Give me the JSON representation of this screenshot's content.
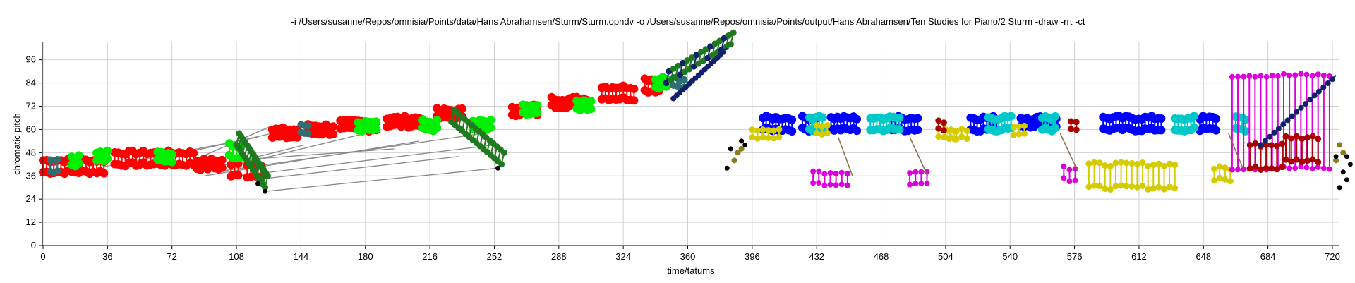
{
  "chart_data": {
    "type": "scatter",
    "title": "-i /Users/susanne/Repos/omnisia/Points/data/Hans Abrahamsen/Sturm/Sturm.opndv -o /Users/susanne/Repos/omnisia/Points/output/Hans Abrahamsen/Ten Studies for Piano/2 Sturm -draw -rrt -ct",
    "xlabel": "time/tatums",
    "ylabel": "chromatic pitch",
    "xlim": [
      0,
      732
    ],
    "ylim": [
      0,
      105
    ],
    "xticks": [
      0,
      36,
      72,
      108,
      144,
      180,
      216,
      252,
      288,
      324,
      360,
      396,
      432,
      468,
      504,
      540,
      576,
      612,
      648,
      684,
      720
    ],
    "yticks": [
      0,
      12,
      24,
      36,
      48,
      60,
      72,
      84,
      96
    ],
    "grid": true,
    "legend": "none",
    "colors": {
      "red": "#ff0000",
      "green": "#00ee00",
      "teal": "#2f6f73",
      "dark_green": "#1f7a1f",
      "navy": "#10206a",
      "blue": "#0000ff",
      "cyan": "#00c8c8",
      "yellow": "#d4cc00",
      "magenta": "#dd00dd",
      "dark_red": "#aa0000",
      "olive": "#8a7a20",
      "brown": "#8b6b4a",
      "black": "#000000",
      "gray": "#808080"
    },
    "series": [
      {
        "color": "red",
        "segments": [
          [
            0,
            36,
            44,
            38,
            48
          ],
          [
            20,
            40,
            38,
            42,
            48
          ],
          [
            86,
            100,
            40,
            44,
            50
          ]
        ]
      },
      {
        "color": "green",
        "segments": [
          [
            16,
            22,
            40,
            42,
            48
          ]
        ]
      },
      {
        "color": "teal",
        "segments": [
          [
            6,
            10,
            38,
            42,
            48
          ]
        ]
      }
    ],
    "red_regions": [
      [
        0,
        34,
        38,
        44
      ],
      [
        40,
        84,
        42,
        48
      ],
      [
        86,
        100,
        40,
        44
      ],
      [
        105,
        110,
        36,
        42
      ],
      [
        114,
        122,
        36,
        42
      ],
      [
        128,
        142,
        56,
        60
      ],
      [
        148,
        162,
        58,
        62
      ],
      [
        166,
        186,
        60,
        64
      ],
      [
        192,
        212,
        62,
        66
      ],
      [
        220,
        234,
        66,
        70
      ],
      [
        262,
        276,
        68,
        72
      ],
      [
        284,
        304,
        72,
        76
      ],
      [
        312,
        330,
        76,
        82
      ],
      [
        336,
        344,
        80,
        86
      ]
    ],
    "green_regions": [
      [
        16,
        20,
        42,
        46
      ],
      [
        30,
        36,
        44,
        48
      ],
      [
        64,
        72,
        44,
        48
      ],
      [
        104,
        110,
        46,
        52
      ],
      [
        176,
        186,
        60,
        64
      ],
      [
        212,
        220,
        60,
        64
      ],
      [
        240,
        250,
        60,
        64
      ],
      [
        268,
        276,
        68,
        72
      ],
      [
        298,
        306,
        70,
        74
      ],
      [
        342,
        348,
        82,
        86
      ]
    ],
    "teal_regions": [
      [
        4,
        8,
        38,
        44
      ],
      [
        144,
        148,
        58,
        62
      ],
      [
        352,
        358,
        82,
        86
      ]
    ],
    "dark_green_diagonals": [
      [
        108,
        124,
        52,
        30
      ],
      [
        228,
        256,
        64,
        42
      ],
      [
        348,
        384,
        84,
        104
      ]
    ],
    "navy_regions": [
      [
        352,
        380,
        76,
        100
      ],
      [
        680,
        720,
        52,
        86
      ]
    ],
    "blue_regions": [
      [
        402,
        420,
        60,
        66
      ],
      [
        424,
        432,
        60,
        66
      ],
      [
        440,
        456,
        60,
        66
      ],
      [
        474,
        490,
        60,
        66
      ],
      [
        518,
        534,
        60,
        66
      ],
      [
        546,
        566,
        62,
        66
      ],
      [
        592,
        626,
        60,
        66
      ],
      [
        646,
        656,
        60,
        66
      ]
    ],
    "cyan_regions": [
      [
        428,
        436,
        60,
        66
      ],
      [
        462,
        480,
        60,
        66
      ],
      [
        528,
        542,
        60,
        66
      ],
      [
        558,
        566,
        60,
        66
      ],
      [
        632,
        644,
        60,
        66
      ],
      [
        666,
        672,
        60,
        66
      ]
    ],
    "yellow_regions": [
      [
        396,
        412,
        56,
        60
      ],
      [
        432,
        438,
        58,
        62
      ],
      [
        500,
        510,
        56,
        60
      ],
      [
        504,
        518,
        56,
        60
      ],
      [
        542,
        548,
        58,
        62
      ],
      [
        584,
        634,
        30,
        42
      ],
      [
        654,
        664,
        34,
        40
      ]
    ],
    "magenta_regions": [
      [
        430,
        450,
        32,
        38
      ],
      [
        484,
        496,
        32,
        38
      ],
      [
        570,
        578,
        34,
        40
      ],
      [
        664,
        720,
        40,
        88
      ]
    ],
    "dark_red_regions": [
      [
        500,
        504,
        60,
        64
      ],
      [
        574,
        578,
        60,
        64
      ],
      [
        674,
        692,
        40,
        52
      ],
      [
        694,
        712,
        44,
        56
      ]
    ],
    "black_points": [
      [
        120,
        32
      ],
      [
        124,
        28
      ],
      [
        254,
        40
      ],
      [
        382,
        40
      ],
      [
        384,
        50
      ],
      [
        390,
        54
      ],
      [
        392,
        52
      ],
      [
        724,
        30
      ],
      [
        728,
        34
      ]
    ]
  }
}
